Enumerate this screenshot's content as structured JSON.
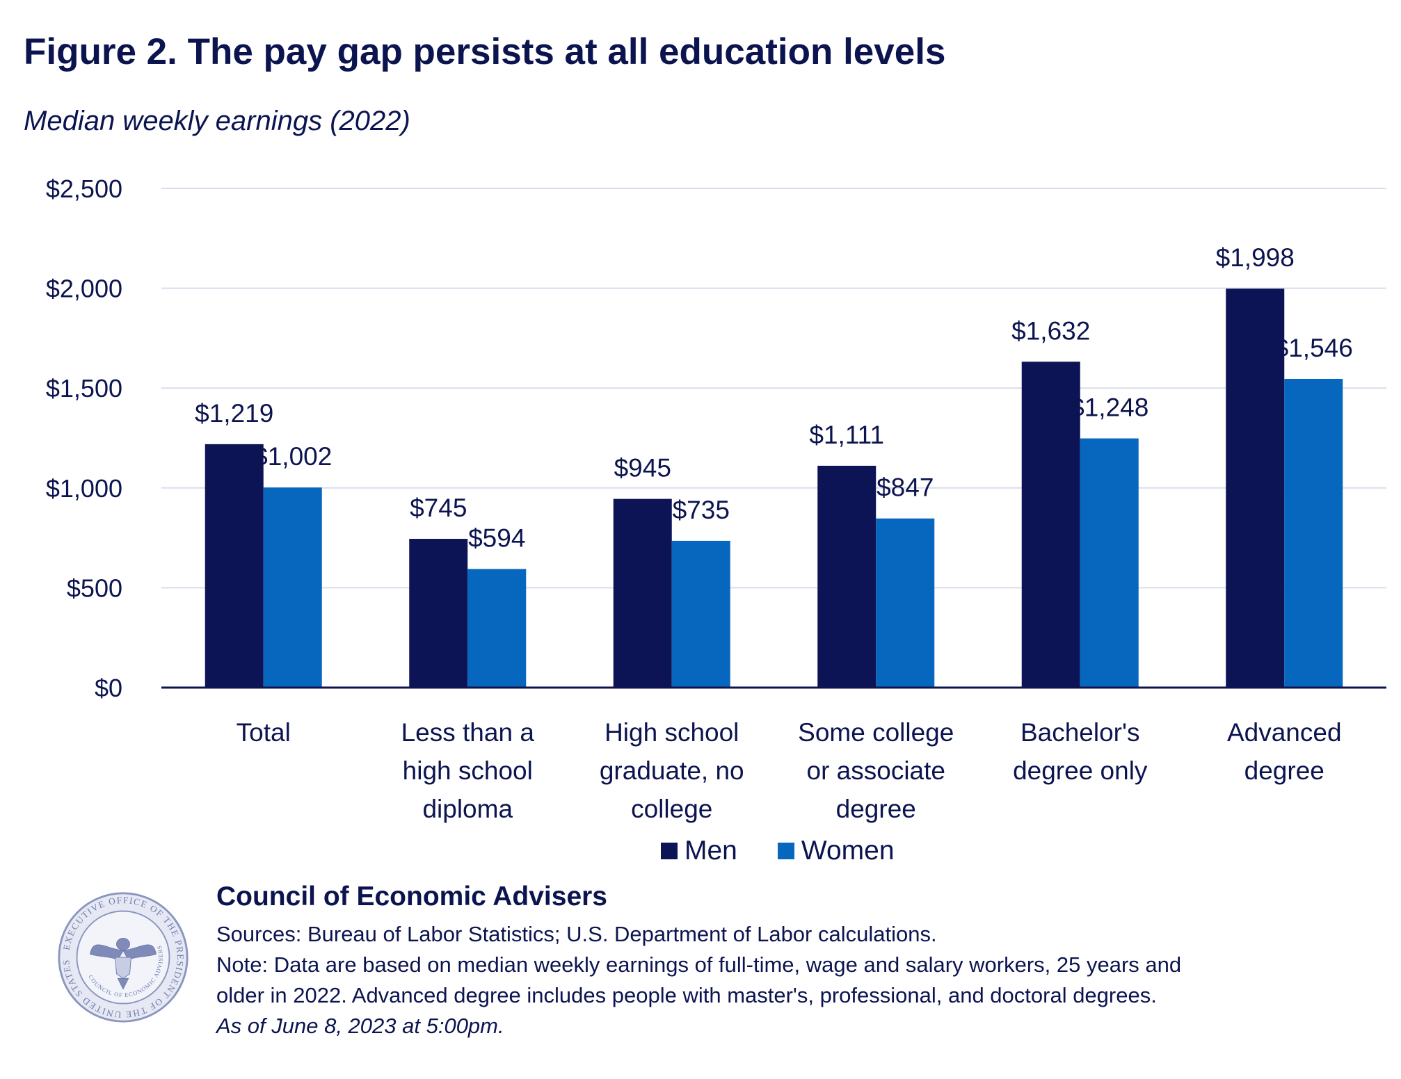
{
  "title": "Figure 2. The pay gap persists at all education levels",
  "subtitle": "Median weekly earnings (2022)",
  "chart_data": {
    "type": "bar",
    "categories": [
      [
        "Total"
      ],
      [
        "Less than a",
        "high school",
        "diploma"
      ],
      [
        "High school",
        "graduate, no",
        "college"
      ],
      [
        "Some college",
        "or associate",
        "degree"
      ],
      [
        "Bachelor's",
        "degree only"
      ],
      [
        "Advanced",
        "degree"
      ]
    ],
    "series": [
      {
        "name": "Men",
        "color": "#0c1456",
        "values": [
          1219,
          745,
          945,
          1111,
          1632,
          1998
        ],
        "labels": [
          "$1,219",
          "$745",
          "$945",
          "$1,111",
          "$1,632",
          "$1,998"
        ]
      },
      {
        "name": "Women",
        "color": "#0766bd",
        "values": [
          1002,
          594,
          735,
          847,
          1248,
          1546
        ],
        "labels": [
          "$1,002",
          "$594",
          "$735",
          "$847",
          "$1,248",
          "$1,546"
        ]
      }
    ],
    "yticks": [
      0,
      500,
      1000,
      1500,
      2000,
      2500
    ],
    "ytick_labels": [
      "$0",
      "$500",
      "$1,000",
      "$1,500",
      "$2,000",
      "$2,500"
    ],
    "ylim": [
      0,
      2500
    ],
    "grid": true,
    "legend_position": "bottom-center"
  },
  "colors": {
    "text": "#0c1450",
    "grid": "#d9dcec",
    "axis": "#0c1450"
  },
  "legend": {
    "men": "Men",
    "women": "Women"
  },
  "branding": {
    "org_name": "Council of Economic Advisers",
    "seal_text": "EXECUTIVE OFFICE OF THE PRESIDENT OF THE UNITED STATES",
    "seal_inner_text": "COUNCIL OF ECONOMIC ADVISERS",
    "seal_icon": "eagle-seal-icon"
  },
  "footer": {
    "sources": "Sources: Bureau of Labor Statistics; U.S. Department of Labor calculations.",
    "note_line1": "Note: Data are based on median weekly earnings of full-time, wage and salary workers, 25 years and",
    "note_line2": "older in 2022. Advanced degree includes people with master's, professional, and doctoral degrees.",
    "as_of": "As of June 8, 2023 at 5:00pm."
  }
}
